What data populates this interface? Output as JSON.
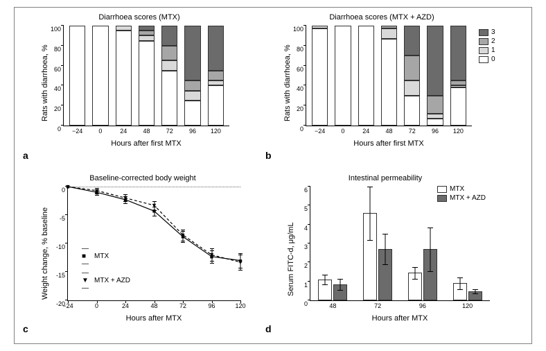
{
  "frame_border_color": "#808080",
  "colors": {
    "score0": "#ffffff",
    "score1": "#d9d9d9",
    "score2": "#a6a6a6",
    "score3": "#6b6b6b",
    "line_mtx": "#000000",
    "line_azd": "#000000",
    "bar_mtx": "#ffffff",
    "bar_azd": "#6b6b6b",
    "axis": "#000000",
    "text": "#3a3a3a"
  },
  "panel_a": {
    "label": "a",
    "title": "Diarrhoea scores (MTX)",
    "ylabel": "Rats with diarrhoea, %",
    "xlabel": "Hours after first MTX",
    "yticks": [
      0,
      20,
      40,
      60,
      80,
      100
    ],
    "ylim": [
      0,
      100
    ],
    "categories": [
      "−24",
      "0",
      "24",
      "48",
      "72",
      "96",
      "120"
    ],
    "series": [
      {
        "s0": 100,
        "s1": 0,
        "s2": 0,
        "s3": 0
      },
      {
        "s0": 100,
        "s1": 0,
        "s2": 0,
        "s3": 0
      },
      {
        "s0": 95,
        "s1": 5,
        "s2": 0,
        "s3": 0
      },
      {
        "s0": 85,
        "s1": 5,
        "s2": 5,
        "s3": 5
      },
      {
        "s0": 55,
        "s1": 10,
        "s2": 15,
        "s3": 20
      },
      {
        "s0": 25,
        "s1": 10,
        "s2": 10,
        "s3": 55
      },
      {
        "s0": 40,
        "s1": 5,
        "s2": 10,
        "s3": 45
      }
    ]
  },
  "panel_b": {
    "label": "b",
    "title": "Diarrhoea scores (MTX + AZD)",
    "ylabel": "Rats with diarrhoea, %",
    "xlabel": "Hours after first MTX",
    "yticks": [
      0,
      20,
      40,
      60,
      80,
      100
    ],
    "ylim": [
      0,
      100
    ],
    "categories": [
      "−24",
      "0",
      "24",
      "48",
      "72",
      "96",
      "120"
    ],
    "series": [
      {
        "s0": 97,
        "s1": 3,
        "s2": 0,
        "s3": 0
      },
      {
        "s0": 100,
        "s1": 0,
        "s2": 0,
        "s3": 0
      },
      {
        "s0": 100,
        "s1": 0,
        "s2": 0,
        "s3": 0
      },
      {
        "s0": 87,
        "s1": 10,
        "s2": 3,
        "s3": 0
      },
      {
        "s0": 30,
        "s1": 15,
        "s2": 25,
        "s3": 30
      },
      {
        "s0": 7,
        "s1": 5,
        "s2": 18,
        "s3": 70
      },
      {
        "s0": 38,
        "s1": 2,
        "s2": 5,
        "s3": 55
      }
    ],
    "legend": [
      {
        "label": "3",
        "key": "score3"
      },
      {
        "label": "2",
        "key": "score2"
      },
      {
        "label": "1",
        "key": "score1"
      },
      {
        "label": "0",
        "key": "score0"
      }
    ]
  },
  "panel_c": {
    "label": "c",
    "title": "Baseline-corrected body weight",
    "ylabel": "Weight change, % baseline",
    "xlabel": "Hours after MTX",
    "xticks": [
      "−24",
      "0",
      "24",
      "48",
      "72",
      "96",
      "120"
    ],
    "yticks": [
      -20,
      -15,
      -10,
      -5,
      0
    ],
    "ylim": [
      -20,
      0
    ],
    "xlim": [
      -24,
      120
    ],
    "series_mtx": {
      "label": "MTX",
      "marker": "■",
      "points": [
        {
          "x": -24,
          "y": 0,
          "err": 0
        },
        {
          "x": 0,
          "y": -1.0,
          "err": 0.5
        },
        {
          "x": 24,
          "y": -2.3,
          "err": 0.6
        },
        {
          "x": 48,
          "y": -4.3,
          "err": 0.8
        },
        {
          "x": 72,
          "y": -8.8,
          "err": 1.0
        },
        {
          "x": 96,
          "y": -12.3,
          "err": 1.1
        },
        {
          "x": 120,
          "y": -13.0,
          "err": 1.3
        }
      ]
    },
    "series_azd": {
      "label": "MTX + AZD",
      "marker": "▼",
      "points": [
        {
          "x": -24,
          "y": 0,
          "err": 0
        },
        {
          "x": 0,
          "y": -0.7,
          "err": 0.5
        },
        {
          "x": 24,
          "y": -2.0,
          "err": 0.6
        },
        {
          "x": 48,
          "y": -3.3,
          "err": 0.8
        },
        {
          "x": 72,
          "y": -8.5,
          "err": 1.0
        },
        {
          "x": 96,
          "y": -12.0,
          "err": 1.1
        },
        {
          "x": 120,
          "y": -13.3,
          "err": 1.3
        }
      ]
    }
  },
  "panel_d": {
    "label": "d",
    "title": "Intestinal permeability",
    "ylabel": "Serum FITC-d, μg/mL",
    "xlabel": "Hours after MTX",
    "yticks": [
      0,
      1,
      2,
      3,
      4,
      5,
      6
    ],
    "ylim": [
      0,
      6
    ],
    "categories": [
      "48",
      "72",
      "96",
      "120"
    ],
    "legend": [
      {
        "label": "MTX",
        "key": "bar_mtx"
      },
      {
        "label": "MTX + AZD",
        "key": "bar_azd"
      }
    ],
    "groups": [
      {
        "mtx": {
          "v": 1.1,
          "err": 0.25
        },
        "azd": {
          "v": 0.85,
          "err": 0.3
        }
      },
      {
        "mtx": {
          "v": 4.6,
          "err": 1.4
        },
        "azd": {
          "v": 2.7,
          "err": 0.8
        }
      },
      {
        "mtx": {
          "v": 1.45,
          "err": 0.3
        },
        "azd": {
          "v": 2.7,
          "err": 1.15
        }
      },
      {
        "mtx": {
          "v": 0.9,
          "err": 0.3
        },
        "azd": {
          "v": 0.48,
          "err": 0.1
        }
      }
    ]
  }
}
